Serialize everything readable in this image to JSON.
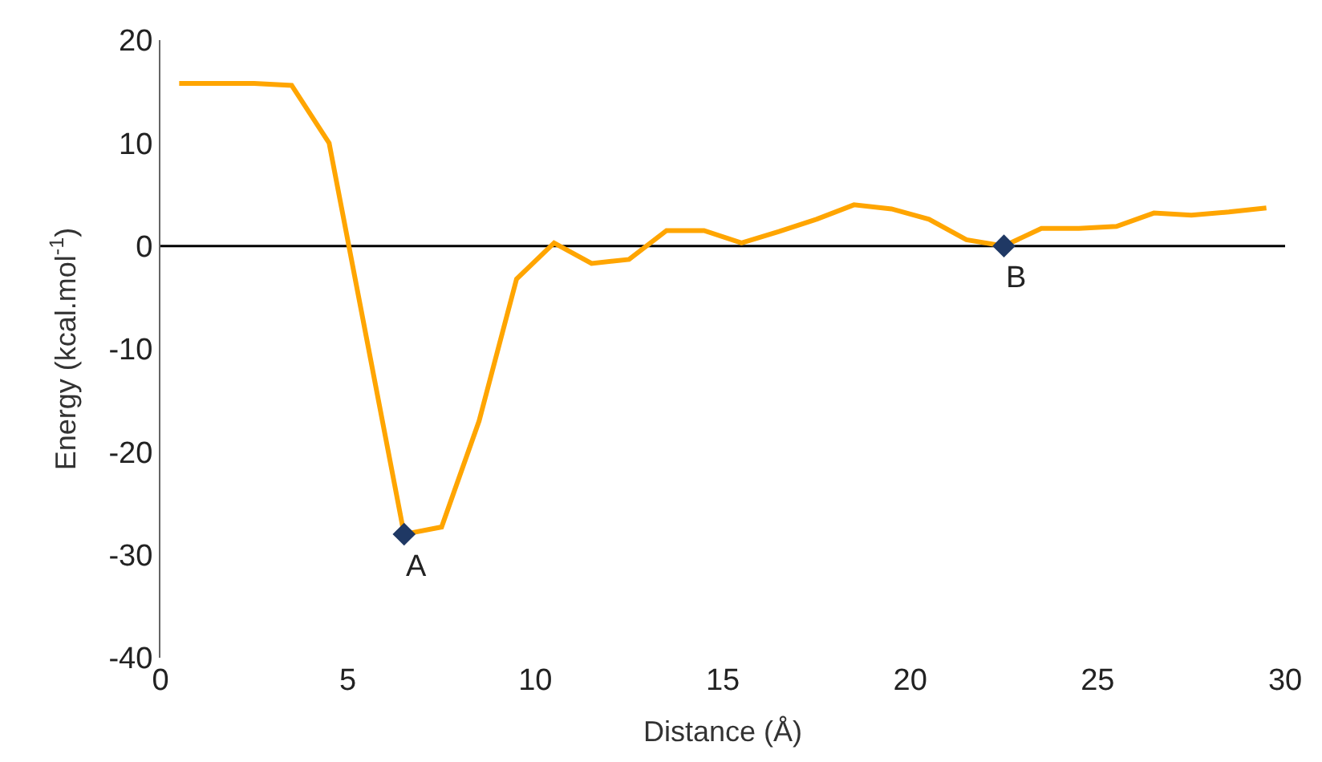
{
  "chart_data": {
    "type": "line",
    "xlabel": "Distance (Å)",
    "ylabel": "Energy (kcal.mol$^{-1}$)",
    "xlim": [
      0,
      30
    ],
    "xticks": [
      0,
      5,
      10,
      15,
      20,
      25,
      30
    ],
    "ylim": [
      -40,
      20
    ],
    "yticks": [
      -40,
      -30,
      -20,
      -10,
      0,
      10,
      20
    ],
    "grid": false,
    "legend": false,
    "series": [
      {
        "color": "#ffa500",
        "marker": "none",
        "x": [
          0.5,
          1.5,
          2.5,
          3.5,
          4.5,
          5.5,
          6.5,
          7.5,
          8.5,
          9.5,
          10.5,
          11.5,
          12.5,
          13.5,
          14.5,
          15.5,
          16.5,
          17.5,
          18.5,
          19.5,
          20.5,
          21.5,
          22.5,
          23.5,
          24.5,
          25.5,
          26.5,
          27.5,
          28.5,
          29.5
        ],
        "values": [
          15.8,
          15.8,
          15.8,
          15.6,
          10,
          -9,
          -28,
          -27.3,
          -17,
          -3.2,
          0.3,
          -1.7,
          -1.3,
          1.5,
          1.5,
          0.3,
          1.4,
          2.6,
          4,
          3.6,
          2.6,
          0.6,
          0,
          1.7,
          1.7,
          1.9,
          3.2,
          3.0,
          3.3,
          3.7
        ]
      },
      {
        "type": "scatter",
        "color": "#1f3864",
        "marker": "diamond",
        "x": [
          6.5,
          22.5
        ],
        "values": [
          -28,
          0
        ]
      }
    ],
    "ref_lines": [
      {
        "axis": "y",
        "value": 0,
        "color": "#000000",
        "line_style": "solid"
      }
    ],
    "annotations": [
      {
        "text": "A",
        "x": 6.5,
        "y": -28
      },
      {
        "text": "B",
        "x": 22.5,
        "y": 0
      }
    ]
  }
}
